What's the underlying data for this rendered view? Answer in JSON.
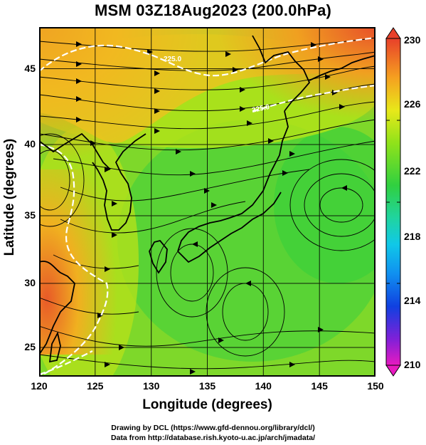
{
  "title": "MSM 03Z18Aug2023 (200.0hPa)",
  "axes": {
    "xlabel": "Longitude (degrees)",
    "ylabel": "Latitude  (degrees)",
    "xticks": [
      "120",
      "125",
      "130",
      "135",
      "140",
      "145",
      "150"
    ],
    "yticks": [
      "25",
      "30",
      "35",
      "40",
      "45"
    ],
    "xlim": [
      120,
      150
    ],
    "ylim": [
      22.4,
      47.6
    ]
  },
  "colorbar": {
    "labels": [
      "230",
      "226",
      "222",
      "218",
      "214",
      "210"
    ],
    "range": [
      210,
      230
    ]
  },
  "contour_labels": [
    "225.0",
    "225.0"
  ],
  "credits": {
    "line1": "Drawing by DCL (https://www.gfd-dennou.org/library/dcl/)",
    "line2": "Data from http://database.rish.kyoto-u.ac.jp/arch/jmadata/"
  },
  "colors": {
    "field_high": "#e8502a",
    "field_mid": "#8fe21a",
    "field_low": "#2fd43a",
    "contour": "#ffffff",
    "streamline": "#000000"
  }
}
